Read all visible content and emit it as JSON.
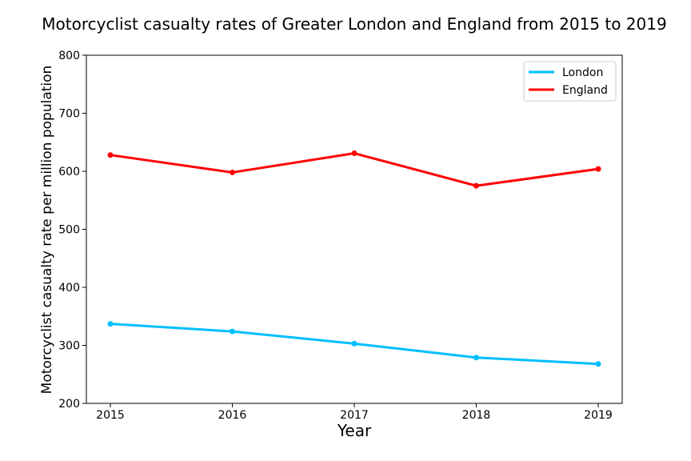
{
  "chart_data": {
    "type": "line",
    "title": "Motorcyclist casualty rates of Greater London and England from 2015 to 2019",
    "xlabel": "Year",
    "ylabel": "Motorcyclist casualty rate per million population",
    "x": [
      2015,
      2016,
      2017,
      2018,
      2019
    ],
    "x_tick_labels": [
      "2015",
      "2016",
      "2017",
      "2018",
      "2019"
    ],
    "ylim": [
      200,
      800
    ],
    "y_ticks": [
      200,
      300,
      400,
      500,
      600,
      700,
      800
    ],
    "y_tick_labels": [
      "200",
      "300",
      "400",
      "500",
      "600",
      "700",
      "800"
    ],
    "grid": false,
    "legend_position": "top-right",
    "markers": true,
    "series": [
      {
        "name": "London",
        "color": "#00bfff",
        "values": [
          337,
          324,
          303,
          279,
          268
        ]
      },
      {
        "name": "England",
        "color": "#ff0000",
        "values": [
          628,
          598,
          631,
          575,
          604
        ]
      }
    ]
  }
}
